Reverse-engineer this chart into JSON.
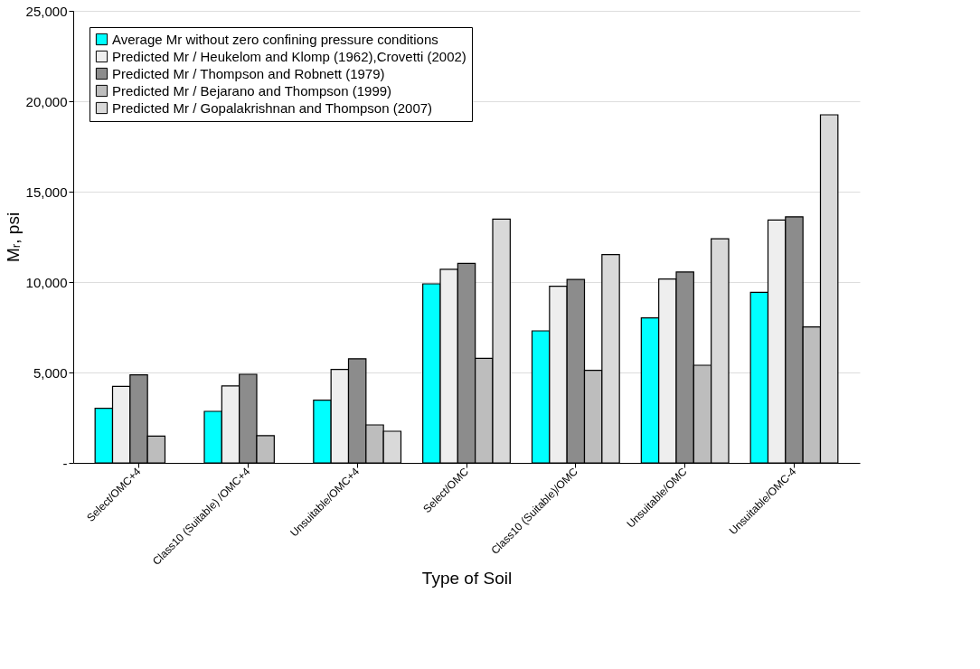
{
  "chart_data": {
    "type": "bar",
    "xlabel": "Type of Soil",
    "ylabel": "Mᵣ, psi",
    "categories": [
      "Select/OMC+4",
      "Class10 (Suitable) /OMC+4",
      "Unsuitable/OMC+4",
      "Select/OMC",
      "Class10 (Suitable)/OMC",
      "Unsuitable/OMC",
      "Unsuitable/OMC-4"
    ],
    "series": [
      {
        "name": "Average Mr without zero confining pressure conditions",
        "color": "#00ffff",
        "values": [
          3020,
          2850,
          3470,
          9900,
          7300,
          8020,
          9430
        ]
      },
      {
        "name": "Predicted Mr / Heukelom and Klomp (1962),Crovetti (2002)",
        "color": "#eeeeee",
        "values": [
          4230,
          4260,
          5170,
          10710,
          9770,
          10170,
          13430
        ]
      },
      {
        "name": "Predicted Mr / Thompson and Robnett (1979)",
        "color": "#8c8c8c",
        "values": [
          4870,
          4900,
          5760,
          11030,
          10140,
          10560,
          13610
        ]
      },
      {
        "name": "Predicted Mr / Bejarano and Thompson (1999)",
        "color": "#bdbdbd",
        "values": [
          1480,
          1510,
          2100,
          5780,
          5120,
          5400,
          7520
        ]
      },
      {
        "name": "Predicted Mr / Gopalakrishnan and Thompson (2007)",
        "color": "#d9d9d9",
        "values": [
          null,
          null,
          1750,
          13480,
          11520,
          12390,
          19250
        ]
      }
    ],
    "ylim": [
      0,
      25000
    ],
    "yticks": [
      {
        "value": 0,
        "label": "-"
      },
      {
        "value": 5000,
        "label": "5,000"
      },
      {
        "value": 10000,
        "label": "10,000"
      },
      {
        "value": 15000,
        "label": "15,000"
      },
      {
        "value": 20000,
        "label": "20,000"
      },
      {
        "value": 25000,
        "label": "25,000"
      }
    ],
    "grid": "y",
    "legend": "top left"
  }
}
